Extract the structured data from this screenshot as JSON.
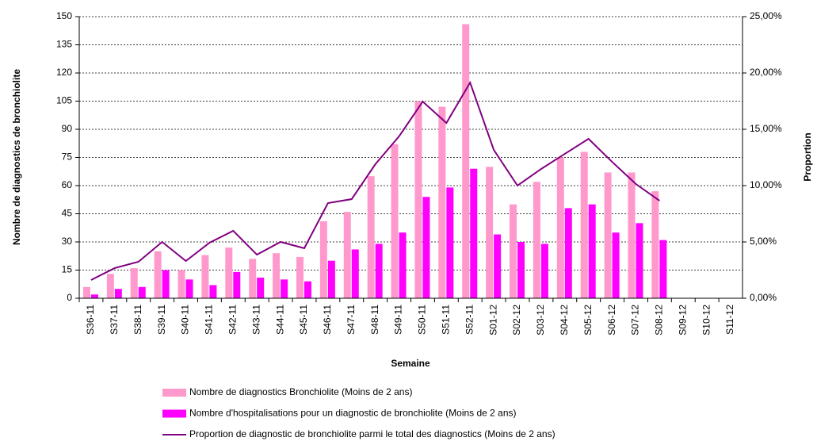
{
  "chart_data": {
    "type": "bar",
    "x_label": "Semaine",
    "y_label": "Nombre de diagnostics de bronchiolite",
    "y2_label": "Proportion",
    "categories": [
      "S36-11",
      "S37-11",
      "S38-11",
      "S39-11",
      "S40-11",
      "S41-11",
      "S42-11",
      "S43-11",
      "S44-11",
      "S45-11",
      "S46-11",
      "S47-11",
      "S48-11",
      "S49-11",
      "S50-11",
      "S51-11",
      "S52-11",
      "S01-12",
      "S02-12",
      "S03-12",
      "S04-12",
      "S05-12",
      "S06-12",
      "S07-12",
      "S08-12",
      "S09-12",
      "S10-12",
      "S11-12"
    ],
    "series": [
      {
        "name": "Nombre de diagnostics Bronchiolite (Moins de 2 ans)",
        "type": "bar",
        "color": "#ff99cc",
        "values": [
          6,
          13,
          16,
          25,
          15,
          23,
          27,
          21,
          24,
          22,
          41,
          46,
          65,
          82,
          105,
          102,
          146,
          70,
          50,
          62,
          75,
          78,
          67,
          67,
          57,
          null,
          null,
          null
        ]
      },
      {
        "name": "Nombre d'hospitalisations pour un diagnostic de bronchiolite (Moins de 2 ans)",
        "type": "bar",
        "color": "#ff00ff",
        "values": [
          2,
          5,
          6,
          15,
          10,
          7,
          14,
          11,
          10,
          9,
          20,
          26,
          29,
          35,
          54,
          59,
          69,
          34,
          30,
          29,
          48,
          50,
          35,
          40,
          31,
          null,
          null,
          null
        ]
      },
      {
        "name": "Proportion de diagnostic de bronchiolite parmi le total des diagnostics (Moins de 2 ans)",
        "type": "line",
        "color": "#800080",
        "axis": "y2",
        "values": [
          1.62,
          2.68,
          3.24,
          5.0,
          3.31,
          4.93,
          5.99,
          3.87,
          5.0,
          4.44,
          8.45,
          8.8,
          11.9,
          14.37,
          17.46,
          15.56,
          19.15,
          13.17,
          10.0,
          11.48,
          12.82,
          14.15,
          12.1,
          10.14,
          8.66,
          null,
          null,
          null
        ]
      }
    ],
    "ylim": [
      0,
      150
    ],
    "yticks": [
      0,
      15,
      30,
      45,
      60,
      75,
      90,
      105,
      120,
      135,
      150
    ],
    "y2lim": [
      0,
      25
    ],
    "y2ticks": [
      {
        "value": 0,
        "label": "0,00%"
      },
      {
        "value": 5,
        "label": "5,00%"
      },
      {
        "value": 10,
        "label": "10,00%"
      },
      {
        "value": 15,
        "label": "15,00%"
      },
      {
        "value": 20,
        "label": "20,00%"
      },
      {
        "value": 25,
        "label": "25,00%"
      }
    ],
    "grid": true,
    "legend": "bottom"
  }
}
